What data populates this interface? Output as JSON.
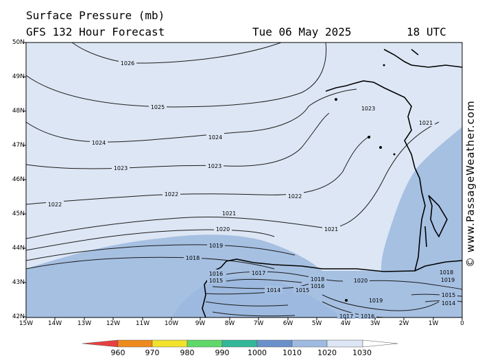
{
  "header": {
    "title": "Surface Pressure (mb)",
    "subtitle": "GFS 132 Hour Forecast",
    "date": "Tue 06 May 2025",
    "time": "18 UTC"
  },
  "credit": "© www.PassageWeather.com",
  "lat_ticks": [
    "50N",
    "49N",
    "48N",
    "47N",
    "46N",
    "45N",
    "44N",
    "43N",
    "42N"
  ],
  "lon_ticks": [
    "15W",
    "14W",
    "13W",
    "12W",
    "11W",
    "10W",
    "9W",
    "8W",
    "7W",
    "6W",
    "5W",
    "4W",
    "3W",
    "2W",
    "1W",
    "0"
  ],
  "colorbar": {
    "ticks": [
      "960",
      "970",
      "980",
      "990",
      "1000",
      "1010",
      "1020",
      "1030"
    ],
    "colors": [
      "#e84040",
      "#ee8a1c",
      "#f2e22a",
      "#5fd86a",
      "#32b898",
      "#6a90cc",
      "#9ebae0",
      "#dde6f4",
      "#ffffff"
    ]
  },
  "isobar_labels": [
    "1026",
    "1025",
    "1024",
    "1024",
    "1023",
    "1023",
    "1023",
    "1022",
    "1022",
    "1022",
    "1021",
    "1021",
    "1021",
    "1020",
    "1020",
    "1019",
    "1019",
    "1019",
    "1018",
    "1018",
    "1018",
    "1017",
    "1017",
    "1016",
    "1016",
    "1016",
    "1015",
    "1015",
    "1015",
    "1014",
    "1014"
  ],
  "fill_colors": {
    "high": "#dde6f4",
    "mid": "#a6c0e2",
    "low": "#6a90cc",
    "coast": "#000000",
    "isobar": "#1a1a1a"
  }
}
